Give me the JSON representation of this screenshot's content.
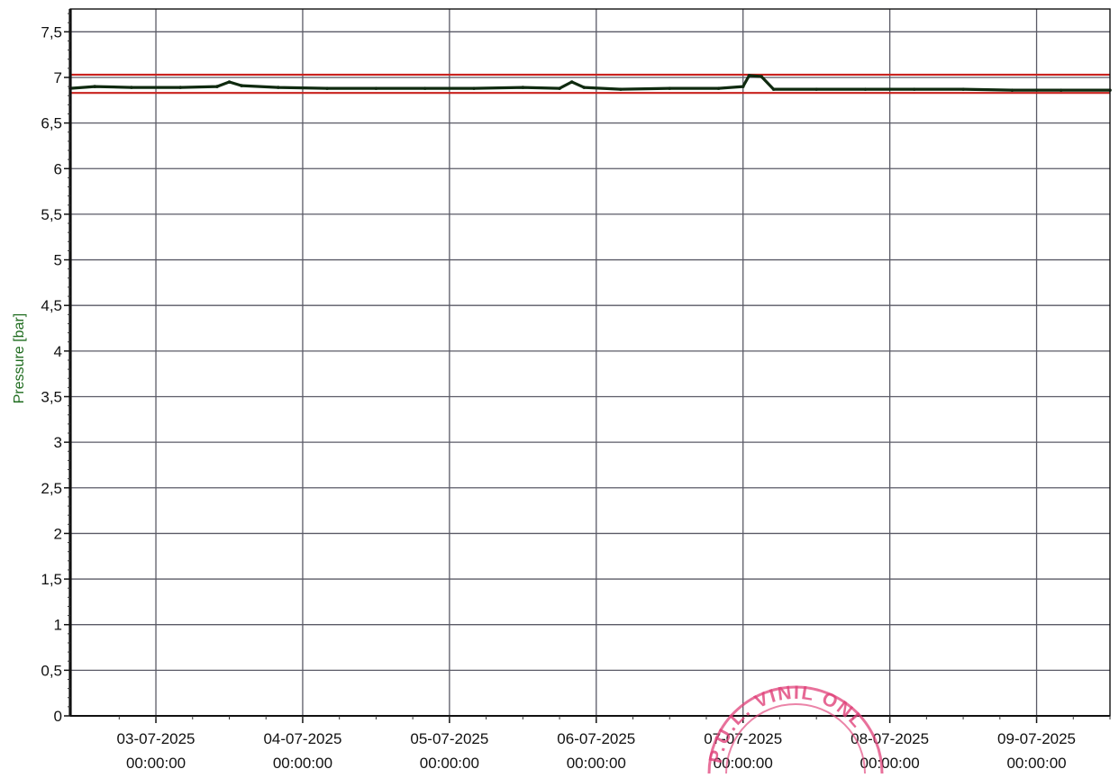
{
  "chart_data": {
    "type": "line",
    "ylabel": "Pressure [bar]",
    "xlabel": "",
    "ylim": [
      0,
      7.75
    ],
    "xlim": [
      "2025-07-02T10:00:00",
      "2025-07-09T12:00:00"
    ],
    "yticks": [
      0,
      0.5,
      1,
      1.5,
      2,
      2.5,
      3,
      3.5,
      4,
      4.5,
      5,
      5.5,
      6,
      6.5,
      7,
      7.5
    ],
    "ytick_labels": [
      "0",
      "0,5",
      "1",
      "1,5",
      "2",
      "2,5",
      "3",
      "3,5",
      "4",
      "4,5",
      "5",
      "5,5",
      "6",
      "6,5",
      "7",
      "7,5"
    ],
    "xticks": [
      {
        "x": "2025-07-03T00:00:00",
        "date_label": "03-07-2025",
        "time_label": "00:00:00"
      },
      {
        "x": "2025-07-04T00:00:00",
        "date_label": "04-07-2025",
        "time_label": "00:00:00"
      },
      {
        "x": "2025-07-05T00:00:00",
        "date_label": "05-07-2025",
        "time_label": "00:00:00"
      },
      {
        "x": "2025-07-06T00:00:00",
        "date_label": "06-07-2025",
        "time_label": "00:00:00"
      },
      {
        "x": "2025-07-07T00:00:00",
        "date_label": "07-07-2025",
        "time_label": "00:00:00"
      },
      {
        "x": "2025-07-08T00:00:00",
        "date_label": "08-07-2025",
        "time_label": "00:00:00"
      },
      {
        "x": "2025-07-09T00:00:00",
        "date_label": "09-07-2025",
        "time_label": "00:00:00"
      }
    ],
    "grid": true,
    "limit_lines": [
      {
        "y": 7.03,
        "color": "#c8221e"
      },
      {
        "y": 6.83,
        "color": "#c8221e"
      }
    ],
    "series": [
      {
        "color": "#0f2a0f",
        "points": [
          {
            "x": "2025-07-02T10:00:00",
            "y": 6.88
          },
          {
            "x": "2025-07-02T14:00:00",
            "y": 6.9
          },
          {
            "x": "2025-07-02T20:00:00",
            "y": 6.89
          },
          {
            "x": "2025-07-03T04:00:00",
            "y": 6.89
          },
          {
            "x": "2025-07-03T10:00:00",
            "y": 6.9
          },
          {
            "x": "2025-07-03T12:00:00",
            "y": 6.95
          },
          {
            "x": "2025-07-03T14:00:00",
            "y": 6.91
          },
          {
            "x": "2025-07-03T20:00:00",
            "y": 6.89
          },
          {
            "x": "2025-07-04T04:00:00",
            "y": 6.88
          },
          {
            "x": "2025-07-04T12:00:00",
            "y": 6.88
          },
          {
            "x": "2025-07-04T20:00:00",
            "y": 6.88
          },
          {
            "x": "2025-07-05T04:00:00",
            "y": 6.88
          },
          {
            "x": "2025-07-05T12:00:00",
            "y": 6.89
          },
          {
            "x": "2025-07-05T18:00:00",
            "y": 6.88
          },
          {
            "x": "2025-07-05T20:00:00",
            "y": 6.95
          },
          {
            "x": "2025-07-05T22:00:00",
            "y": 6.89
          },
          {
            "x": "2025-07-06T04:00:00",
            "y": 6.87
          },
          {
            "x": "2025-07-06T12:00:00",
            "y": 6.88
          },
          {
            "x": "2025-07-06T20:00:00",
            "y": 6.88
          },
          {
            "x": "2025-07-07T00:00:00",
            "y": 6.9
          },
          {
            "x": "2025-07-07T01:00:00",
            "y": 7.02
          },
          {
            "x": "2025-07-07T03:00:00",
            "y": 7.01
          },
          {
            "x": "2025-07-07T05:00:00",
            "y": 6.87
          },
          {
            "x": "2025-07-07T12:00:00",
            "y": 6.87
          },
          {
            "x": "2025-07-07T20:00:00",
            "y": 6.87
          },
          {
            "x": "2025-07-08T04:00:00",
            "y": 6.87
          },
          {
            "x": "2025-07-08T12:00:00",
            "y": 6.87
          },
          {
            "x": "2025-07-08T20:00:00",
            "y": 6.86
          },
          {
            "x": "2025-07-09T04:00:00",
            "y": 6.86
          },
          {
            "x": "2025-07-09T12:00:00",
            "y": 6.86
          }
        ]
      }
    ],
    "stamp_text": "P.U.L. VINIL ONL"
  }
}
